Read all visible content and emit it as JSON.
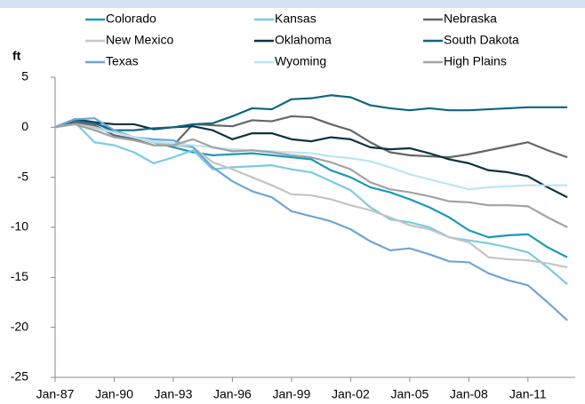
{
  "chart_data": {
    "type": "line",
    "y_label": "ft",
    "x": [
      1987,
      1988,
      1989,
      1990,
      1991,
      1992,
      1993,
      1994,
      1995,
      1996,
      1997,
      1998,
      1999,
      2000,
      2001,
      2002,
      2003,
      2004,
      2005,
      2006,
      2007,
      2008,
      2009,
      2010,
      2011,
      2012,
      2013
    ],
    "xlim": [
      1987,
      2013.4
    ],
    "xticks": [
      {
        "value": 1987,
        "label": "Jan-87"
      },
      {
        "value": 1990,
        "label": "Jan-90"
      },
      {
        "value": 1993,
        "label": "Jan-93"
      },
      {
        "value": 1996,
        "label": "Jan-96"
      },
      {
        "value": 1999,
        "label": "Jan-99"
      },
      {
        "value": 2002,
        "label": "Jan-02"
      },
      {
        "value": 2005,
        "label": "Jan-05"
      },
      {
        "value": 2008,
        "label": "Jan-08"
      },
      {
        "value": 2011,
        "label": "Jan-11"
      }
    ],
    "ylim": [
      -25,
      5
    ],
    "yticks": [
      -25,
      -20,
      -15,
      -10,
      -5,
      0,
      5
    ],
    "grid": false,
    "legend": "top",
    "series": [
      {
        "name": "Colorado",
        "color": "#1b9ab8",
        "values": [
          0,
          0.8,
          0.5,
          -0.5,
          -1.0,
          -1.5,
          -2.0,
          -2.5,
          -2.8,
          -2.7,
          -2.6,
          -2.8,
          -3.0,
          -3.2,
          -4.3,
          -5.0,
          -6.0,
          -6.5,
          -7.2,
          -8.0,
          -9.0,
          -10.3,
          -11.0,
          -10.8,
          -10.7,
          -12.0,
          -13.0
        ]
      },
      {
        "name": "Kansas",
        "color": "#7ccbe0",
        "values": [
          0,
          0.5,
          -1.5,
          -1.8,
          -2.5,
          -3.6,
          -3.0,
          -2.3,
          -4.2,
          -4.0,
          -3.9,
          -3.8,
          -4.2,
          -4.5,
          -5.4,
          -6.3,
          -8.0,
          -9.2,
          -9.5,
          -10.0,
          -11.0,
          -11.3,
          -11.6,
          -12.0,
          -12.5,
          -14.0,
          -15.7
        ]
      },
      {
        "name": "Nebraska",
        "color": "#666666",
        "values": [
          0,
          0.5,
          0.2,
          -0.8,
          -1.2,
          -1.8,
          -1.8,
          0.3,
          0.2,
          0.1,
          0.7,
          0.6,
          1.1,
          1.0,
          0.3,
          -0.3,
          -1.5,
          -2.5,
          -2.8,
          -2.9,
          -3.0,
          -2.7,
          -2.3,
          -1.9,
          -1.5,
          -2.3,
          -3.0
        ]
      },
      {
        "name": "New Mexico",
        "color": "#c4c4c4",
        "values": [
          0,
          0.3,
          0.0,
          -0.5,
          -1.0,
          -1.5,
          -1.8,
          -2.0,
          -3.5,
          -4.2,
          -5.0,
          -5.8,
          -6.7,
          -6.8,
          -7.2,
          -7.8,
          -8.3,
          -9.0,
          -9.8,
          -10.2,
          -11.0,
          -11.5,
          -13.0,
          -13.2,
          -13.3,
          -13.6,
          -14.0
        ]
      },
      {
        "name": "Oklahoma",
        "color": "#0b3340",
        "values": [
          0,
          0.8,
          0.5,
          0.3,
          0.3,
          -0.2,
          0.0,
          0.1,
          -0.3,
          -1.2,
          -0.6,
          -0.6,
          -1.2,
          -1.4,
          -1.0,
          -1.2,
          -2.0,
          -2.2,
          -2.1,
          -2.6,
          -3.2,
          -3.6,
          -4.3,
          -4.5,
          -4.9,
          -6.0,
          -7.0
        ]
      },
      {
        "name": "South Dakota",
        "color": "#0e6580",
        "values": [
          0,
          0.7,
          0.4,
          -0.3,
          -0.3,
          -0.1,
          0.0,
          0.3,
          0.4,
          1.1,
          1.9,
          1.8,
          2.8,
          2.9,
          3.2,
          3.0,
          2.2,
          1.9,
          1.7,
          1.9,
          1.7,
          1.7,
          1.8,
          1.9,
          2.0,
          2.0,
          2.0
        ]
      },
      {
        "name": "Texas",
        "color": "#6ea6d6",
        "values": [
          0,
          0.8,
          0.9,
          -0.3,
          -1.0,
          -1.2,
          -1.3,
          -2.0,
          -4.0,
          -5.4,
          -6.4,
          -7.0,
          -8.4,
          -8.9,
          -9.4,
          -10.2,
          -11.4,
          -12.3,
          -12.1,
          -12.7,
          -13.4,
          -13.5,
          -14.6,
          -15.3,
          -15.8,
          -17.5,
          -19.3
        ]
      },
      {
        "name": "Wyoming",
        "color": "#b9e6f4",
        "values": [
          0,
          0.3,
          -0.2,
          -0.5,
          -1.0,
          -1.4,
          -1.6,
          -1.8,
          -2.0,
          -2.2,
          -2.3,
          -2.4,
          -2.5,
          -2.6,
          -2.9,
          -3.1,
          -3.4,
          -4.0,
          -4.7,
          -5.2,
          -5.7,
          -6.2,
          -6.0,
          -5.9,
          -5.8,
          -5.8,
          -5.8
        ]
      },
      {
        "name": "High Plains",
        "color": "#a3a3a3",
        "values": [
          0,
          0.3,
          -0.3,
          -1.0,
          -1.3,
          -1.8,
          -1.8,
          -1.2,
          -2.0,
          -2.4,
          -2.3,
          -2.5,
          -2.8,
          -3.0,
          -3.5,
          -4.2,
          -5.5,
          -6.2,
          -6.5,
          -6.9,
          -7.4,
          -7.5,
          -7.8,
          -7.8,
          -7.9,
          -9.0,
          -10.0
        ]
      }
    ]
  }
}
